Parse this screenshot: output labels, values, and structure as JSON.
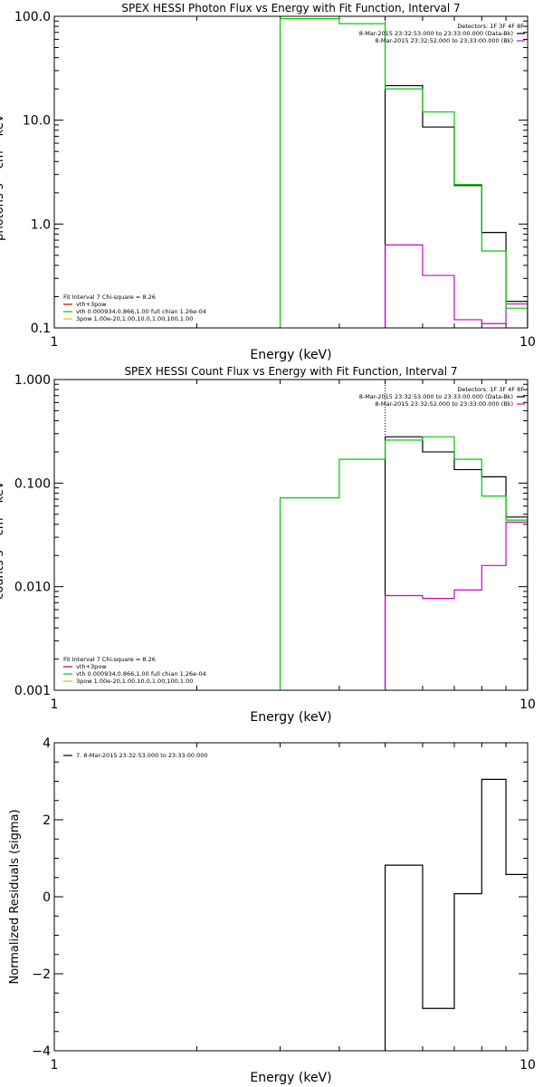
{
  "chart_data": [
    {
      "type": "line",
      "title": "SPEX HESSI Photon Flux vs Energy with Fit Function, Interval 7",
      "xlabel": "Energy (keV)",
      "ylabel": "photons s⁻¹ cm⁻² keV⁻¹",
      "xscale": "log",
      "yscale": "log",
      "xlim": [
        1,
        10
      ],
      "ylim": [
        0.1,
        100
      ],
      "xticks": [
        {
          "v": 1,
          "label": "1"
        },
        {
          "v": 10,
          "label": "10"
        }
      ],
      "yticks": [
        {
          "v": 0.1,
          "label": "0.1"
        },
        {
          "v": 1,
          "label": "1.0"
        },
        {
          "v": 10,
          "label": "10.0"
        },
        {
          "v": 100,
          "label": "100.0"
        }
      ],
      "fit_start_line": 5.0,
      "legend_right": [
        {
          "text": "Detectors: 1F 3F 4F 8F",
          "color": "#000000",
          "swatch": false
        },
        {
          "text": "8-Mar-2015 23:32:53.000 to 23:33:00.000 (Data-Bk)",
          "color": "#000000",
          "swatch": true
        },
        {
          "text": "8-Mar-2015 23:32:52.000 to 23:33:00.000 (Bk)",
          "color": "#cc00cc",
          "swatch": true
        }
      ],
      "legend_left": [
        {
          "text": "Fit Interval 7   Chi-square = 8.26",
          "color": "#000000",
          "swatch": false
        },
        {
          "text": "vth+3pow",
          "color": "#cc0000",
          "swatch": true
        },
        {
          "text": "vth 0.000934,0.866,1.00  full chian 1.26e-04",
          "color": "#00cc00",
          "swatch": true
        },
        {
          "text": "3pow 1.00e-20,1.00,10.0,1.00,100,1.00",
          "color": "#d4c000",
          "swatch": true
        }
      ],
      "series": [
        {
          "color": "#000000",
          "edges": [
            5.0,
            6.0,
            7.0,
            8.0,
            9.0,
            10.0
          ],
          "values": [
            21.5,
            8.6,
            2.35,
            0.83,
            0.18
          ]
        },
        {
          "color": "#cc00cc",
          "edges": [
            5.0,
            6.0,
            7.0,
            8.0,
            9.0,
            10.0
          ],
          "values": [
            0.63,
            0.32,
            0.12,
            0.11,
            0.17
          ]
        },
        {
          "color": "#00cc00",
          "edges": [
            3.0,
            4.0,
            5.0,
            6.0,
            7.0,
            8.0,
            9.0,
            10.0
          ],
          "values": [
            95,
            85,
            20.0,
            12.0,
            2.4,
            0.55,
            0.155
          ]
        }
      ]
    },
    {
      "type": "line",
      "title": "SPEX HESSI Count Flux vs Energy with Fit Function, Interval 7",
      "xlabel": "Energy (keV)",
      "ylabel": "counts s⁻¹ cm⁻² keV⁻¹",
      "xscale": "log",
      "yscale": "log",
      "xlim": [
        1,
        10
      ],
      "ylim": [
        0.001,
        1
      ],
      "xticks": [
        {
          "v": 1,
          "label": "1"
        },
        {
          "v": 10,
          "label": "10"
        }
      ],
      "yticks": [
        {
          "v": 0.001,
          "label": "0.001"
        },
        {
          "v": 0.01,
          "label": "0.010"
        },
        {
          "v": 0.1,
          "label": "0.100"
        },
        {
          "v": 1,
          "label": "1.000"
        }
      ],
      "fit_start_line": 5.0,
      "legend_right": [
        {
          "text": "Detectors: 1F 3F 4F 8F",
          "color": "#000000",
          "swatch": false
        },
        {
          "text": "8-Mar-2015 23:32:53.000 to 23:33:00.000 (Data-Bk)",
          "color": "#000000",
          "swatch": true
        },
        {
          "text": "8-Mar-2015 23:32:52.000 to 23:33:00.000 (Bk)",
          "color": "#cc00cc",
          "swatch": true
        }
      ],
      "legend_left": [
        {
          "text": "Fit Interval 7   Chi-square = 8.26",
          "color": "#000000",
          "swatch": false
        },
        {
          "text": "vth+3pow",
          "color": "#cc0000",
          "swatch": true
        },
        {
          "text": "vth 0.000934,0.866,1.00  full chian 1.26e-04",
          "color": "#00cc00",
          "swatch": true
        },
        {
          "text": "3pow 1.00e-20,1.00,10.0,1.00,100,1.00",
          "color": "#d4c000",
          "swatch": true
        }
      ],
      "series": [
        {
          "color": "#000000",
          "edges": [
            5.0,
            6.0,
            7.0,
            8.0,
            9.0,
            10.0
          ],
          "values": [
            0.28,
            0.2,
            0.135,
            0.115,
            0.047
          ]
        },
        {
          "color": "#cc00cc",
          "edges": [
            5.0,
            6.0,
            7.0,
            8.0,
            9.0,
            10.0
          ],
          "values": [
            0.0082,
            0.0077,
            0.0093,
            0.016,
            0.042
          ]
        },
        {
          "color": "#00cc00",
          "edges": [
            3.0,
            4.0,
            5.0,
            6.0,
            7.0,
            8.0,
            9.0,
            10.0
          ],
          "values": [
            0.072,
            0.17,
            0.26,
            0.28,
            0.17,
            0.075,
            0.044
          ]
        }
      ]
    },
    {
      "type": "line",
      "title": "",
      "xlabel": "Energy (keV)",
      "ylabel": "Normalized Residuals (sigma)",
      "xscale": "log",
      "yscale": "linear",
      "xlim": [
        1,
        10
      ],
      "ylim": [
        -4,
        4
      ],
      "xticks": [
        {
          "v": 1,
          "label": "1"
        },
        {
          "v": 10,
          "label": "10"
        }
      ],
      "yticks": [
        {
          "v": -4,
          "label": "−4"
        },
        {
          "v": -2,
          "label": "−2"
        },
        {
          "v": 0,
          "label": "0"
        },
        {
          "v": 2,
          "label": "2"
        },
        {
          "v": 4,
          "label": "4"
        }
      ],
      "legend_left": [
        {
          "text": "7.  8-Mar-2015 23:32:53.000 to 23:33:00.000",
          "color": "#000000",
          "swatch": true
        }
      ],
      "series": [
        {
          "color": "#000000",
          "edges": [
            5.0,
            6.0,
            7.0,
            8.0,
            9.0,
            10.0
          ],
          "values": [
            0.82,
            -2.9,
            0.08,
            3.05,
            0.58
          ]
        }
      ]
    }
  ]
}
